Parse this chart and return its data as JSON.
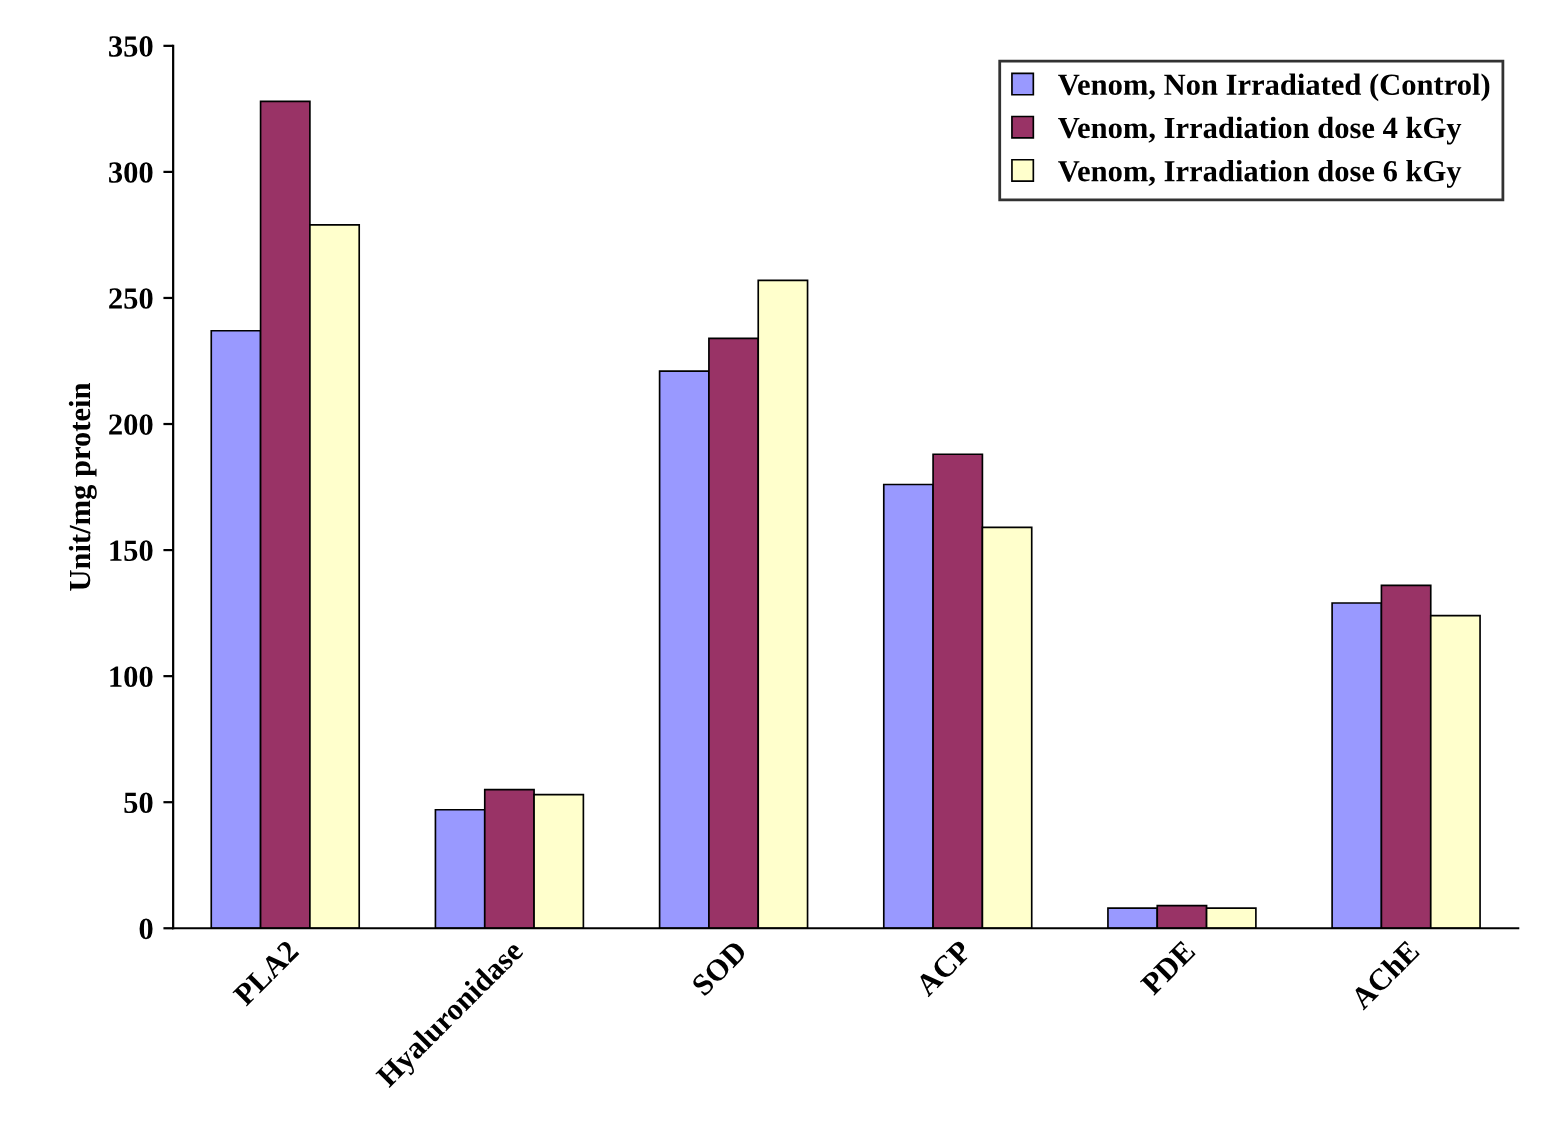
{
  "chart_data": {
    "type": "bar",
    "ylabel": "Unit/mg protein",
    "categories": [
      "PLA2",
      "Hyaluronidase",
      "SOD",
      "ACP",
      "PDE",
      "AChE"
    ],
    "series": [
      {
        "name": "Venom, Non Irradiated (Control)",
        "color": "#9999ff",
        "values": [
          237,
          47,
          221,
          176,
          8,
          129
        ]
      },
      {
        "name": "Venom, Irradiation dose 4 kGy",
        "color": "#993366",
        "values": [
          328,
          55,
          234,
          188,
          9,
          136
        ]
      },
      {
        "name": "Venom, Irradiation dose 6 kGy",
        "color": "#ffffcc",
        "values": [
          279,
          53,
          257,
          159,
          8,
          124
        ]
      }
    ],
    "ylim": [
      0,
      350
    ],
    "yticks": [
      0,
      50,
      100,
      150,
      200,
      250,
      300,
      350
    ],
    "grid": false,
    "legend": "top right"
  }
}
